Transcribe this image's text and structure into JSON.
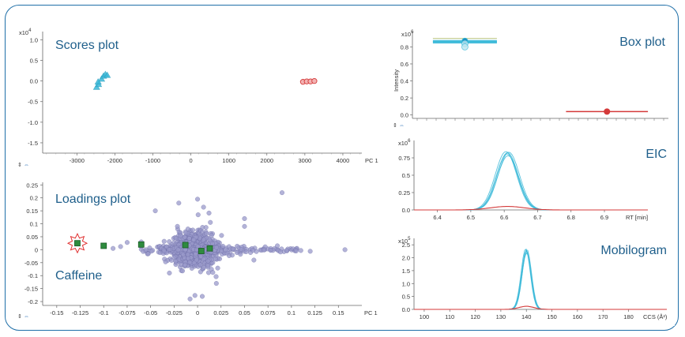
{
  "colors": {
    "frame": "#1f6fa8",
    "cyan": "#39b8d8",
    "red": "#d43a3a",
    "purple": "#7d7db4",
    "green": "#2e8b3e",
    "title": "#1f5f8b",
    "star": "#e03030"
  },
  "scores": {
    "title": "Scores plot",
    "ymult": "x10",
    "yexp": "4",
    "xunit": "PC 1",
    "xticks": [
      -3000,
      -2000,
      -1000,
      0,
      1000,
      2000,
      3000,
      4000
    ],
    "yticks": [
      1.0,
      0.5,
      0.0,
      -0.5,
      -1.0,
      -1.5
    ],
    "xlim": [
      -3900,
      4500
    ],
    "ylim": [
      -1.75,
      1.2
    ],
    "cyan_points": [
      [
        -2480,
        -0.15
      ],
      [
        -2430,
        -0.08
      ],
      [
        -2350,
        0.05
      ],
      [
        -2300,
        0.12
      ],
      [
        -2250,
        0.16
      ],
      [
        -2200,
        0.14
      ],
      [
        -2440,
        -0.02
      ]
    ],
    "red_points": [
      [
        2950,
        -0.02
      ],
      [
        3050,
        -0.01
      ],
      [
        3150,
        -0.01
      ],
      [
        3250,
        0.0
      ]
    ]
  },
  "loadings": {
    "title": "Loadings plot",
    "label": "Caffeine",
    "xunit": "PC 1",
    "xticks": [
      -0.15,
      -0.125,
      -0.1,
      -0.075,
      -0.05,
      -0.025,
      0,
      0.025,
      0.05,
      0.075,
      0.1,
      0.125,
      0.15
    ],
    "xticklabels": [
      "-0.15",
      "-0.125",
      "-0.1",
      "-0.075",
      "-0.05",
      "-0.025",
      "0",
      "0.025",
      "0.05",
      "0.075",
      "0.1",
      "0.125",
      "0.15"
    ],
    "yticks": [
      0.25,
      0.2,
      0.15,
      0.1,
      0.05,
      0,
      -0.05,
      -0.1,
      -0.15,
      -0.2
    ],
    "yticklabels": [
      "0.25",
      "0.2",
      "0.15",
      "0.1",
      "0.05",
      "0",
      "-0.05",
      "-0.1",
      "-0.15",
      "-0.2"
    ],
    "xlim": [
      -0.165,
      0.175
    ],
    "ylim": [
      -0.215,
      0.26
    ],
    "green_points": [
      [
        -0.128,
        0.025
      ],
      [
        -0.1,
        0.015
      ],
      [
        -0.06,
        0.02
      ],
      [
        -0.013,
        0.018
      ],
      [
        0.004,
        -0.005
      ],
      [
        0.013,
        0.005
      ]
    ],
    "highlight": [
      -0.128,
      0.025
    ]
  },
  "boxplot": {
    "title": "Box plot",
    "ylabel": "Intensity",
    "ymult": "x10",
    "yexp": "6",
    "yticks": [
      0.8,
      0.6,
      0.4,
      0.2,
      0.0
    ],
    "ylim": [
      -0.04,
      0.98
    ],
    "groups": [
      {
        "color": "cyan",
        "median": 0.86,
        "min_frac": 0.08,
        "max_frac": 0.33,
        "iqr": [
          0.84,
          0.88
        ],
        "points": [
          0.87,
          0.84,
          0.8
        ]
      },
      {
        "color": "red",
        "median": 0.04,
        "min_frac": 0.6,
        "max_frac": 0.92,
        "iqr": [
          0.04,
          0.04
        ],
        "points": [
          0.04
        ]
      }
    ]
  },
  "eic": {
    "title": "EIC",
    "ymult": "x10",
    "yexp": "6",
    "yticks": [
      0.75,
      0.5,
      0.25,
      0.0
    ],
    "yticklabels": [
      "0.75",
      "0.5",
      "0.25",
      "0.0"
    ],
    "xticks": [
      6.4,
      6.5,
      6.6,
      6.7,
      6.8,
      6.9
    ],
    "xticklabels": [
      "6.4",
      "6.5",
      "6.6",
      "6.7",
      "6.8",
      "6.9"
    ],
    "xunit": "RT [min]",
    "xlim": [
      6.33,
      7.03
    ],
    "ylim": [
      0,
      1.0
    ],
    "peak_center": 6.61,
    "peak_sigma": 0.032,
    "peak_height": 0.84,
    "red_height": 0.05
  },
  "mobilogram": {
    "title": "Mobilogram",
    "ymult": "x10",
    "yexp": "5",
    "yticks": [
      2.5,
      2.0,
      1.5,
      1.0,
      0.5,
      0.0
    ],
    "yticklabels": [
      "2.5",
      "2.0",
      "1.5",
      "1.0",
      "0.5",
      "0.0"
    ],
    "xticks": [
      100,
      110,
      120,
      130,
      140,
      150,
      160,
      170,
      180
    ],
    "xticklabels": [
      "100",
      "110",
      "120",
      "130",
      "140",
      "150",
      "160",
      "170",
      "180"
    ],
    "xunit": "CCS (Å²)",
    "xlim": [
      96,
      195
    ],
    "ylim": [
      0,
      2.75
    ],
    "peak_center": 140,
    "peak_sigma": 1.8,
    "peak_height": 2.35,
    "red_height": 0.12
  }
}
